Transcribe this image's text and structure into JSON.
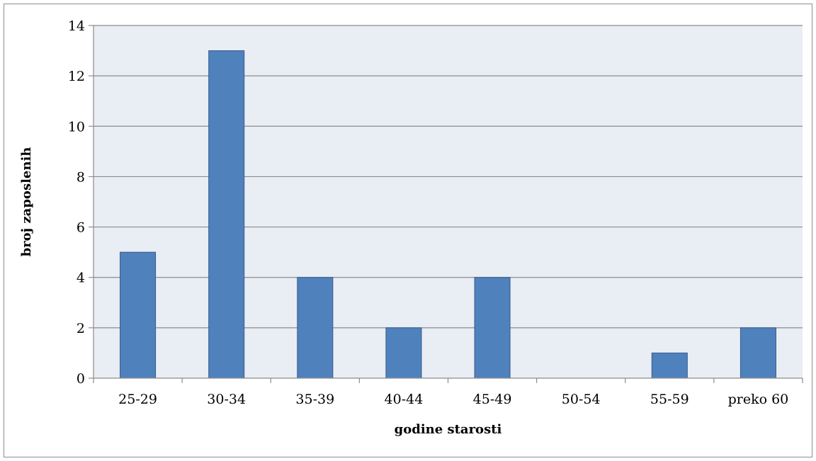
{
  "chart_data": {
    "type": "bar",
    "title": "",
    "xlabel": "godine starosti",
    "ylabel": "broj zaposlenih",
    "categories": [
      "25-29",
      "30-34",
      "35-39",
      "40-44",
      "45-49",
      "50-54",
      "55-59",
      "preko 60"
    ],
    "values": [
      5,
      13,
      4,
      2,
      4,
      0,
      1,
      2
    ],
    "ylim": [
      0,
      14
    ],
    "yticks": [
      0,
      2,
      4,
      6,
      8,
      10,
      12,
      14
    ],
    "grid": true,
    "legend": "none",
    "colors": {
      "bar": "#4f81bd",
      "bar_border": "#385d8a",
      "plot_background": "#e9edf4",
      "gridline": "#8c8c8c"
    }
  }
}
